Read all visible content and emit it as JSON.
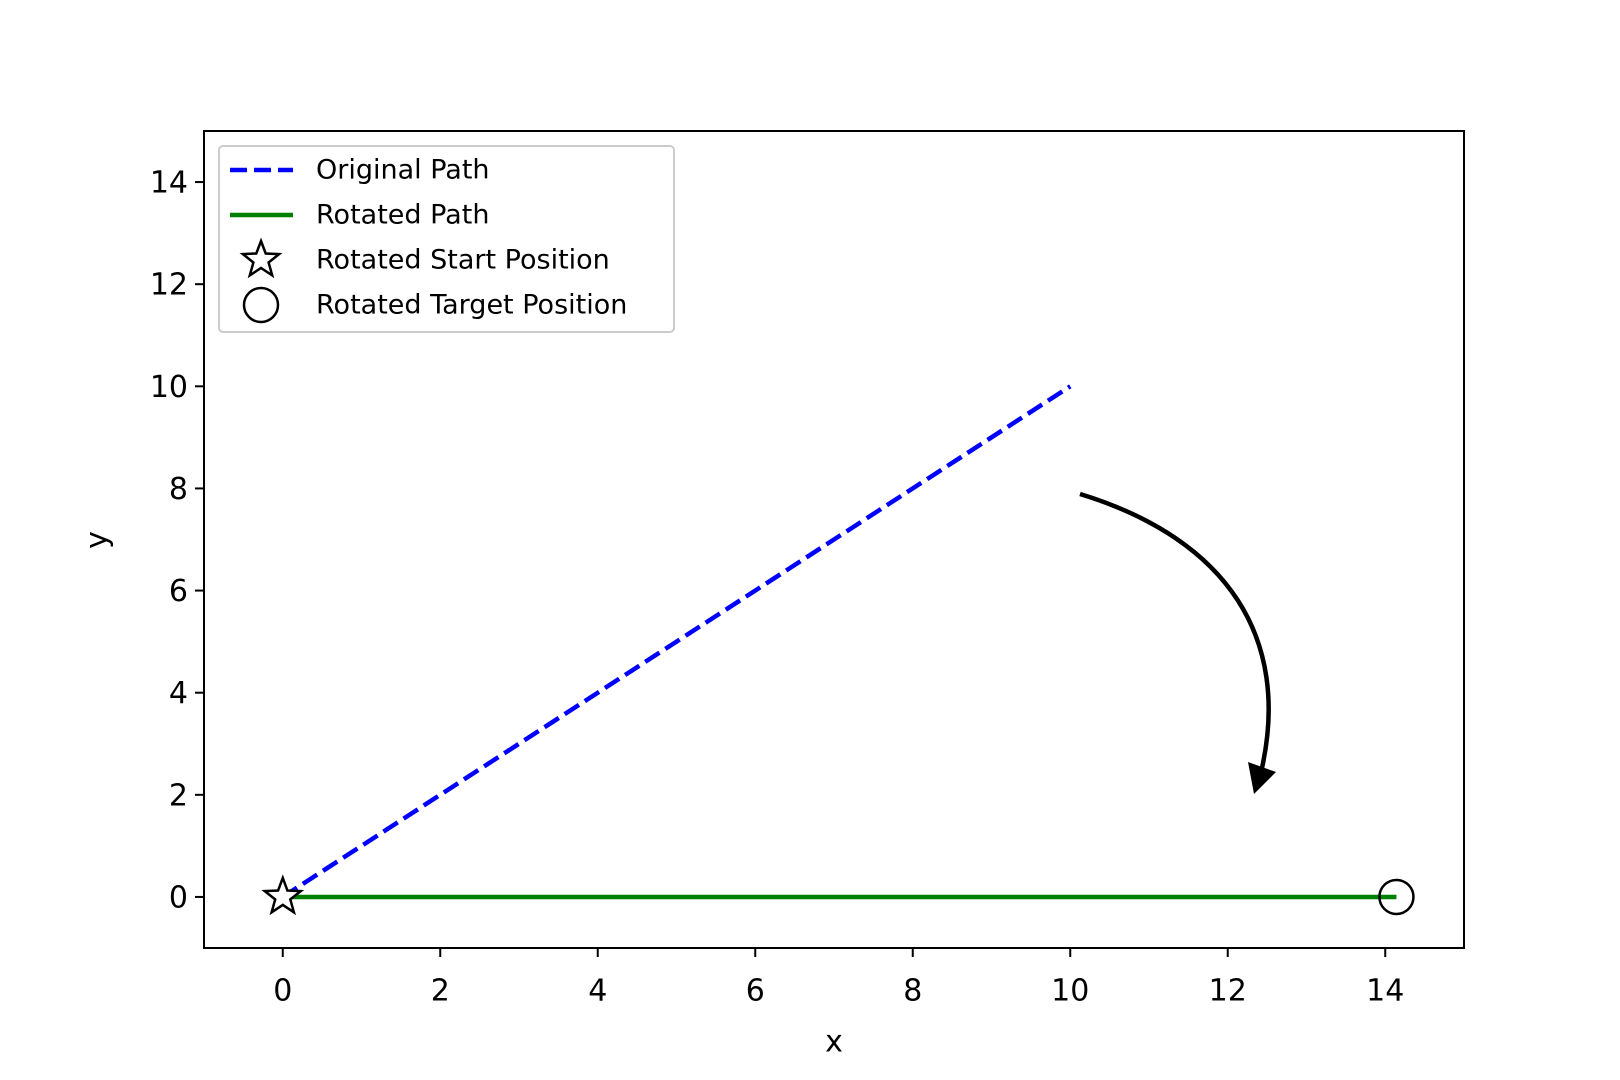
{
  "chart_data": {
    "type": "line",
    "xlabel": "x",
    "ylabel": "y",
    "xlim": [
      -1,
      15
    ],
    "ylim": [
      -1,
      15
    ],
    "xticks": [
      0,
      2,
      4,
      6,
      8,
      10,
      12,
      14
    ],
    "yticks": [
      0,
      2,
      4,
      6,
      8,
      10,
      12,
      14
    ],
    "grid": false,
    "legend": "upper left",
    "series": [
      {
        "name": "Original Path",
        "color": "#0000ff",
        "style": "dashed",
        "x": [
          0,
          10
        ],
        "values": [
          0,
          10
        ]
      },
      {
        "name": "Rotated Path",
        "color": "#008000",
        "style": "solid",
        "x": [
          0,
          14.142
        ],
        "values": [
          0,
          0
        ]
      },
      {
        "name": "Rotated Start Position",
        "color": "#000000",
        "marker": "star",
        "x": [
          0
        ],
        "values": [
          0
        ]
      },
      {
        "name": "Rotated Target Position",
        "color": "#000000",
        "marker": "circle",
        "x": [
          14.142
        ],
        "values": [
          0
        ]
      }
    ]
  }
}
